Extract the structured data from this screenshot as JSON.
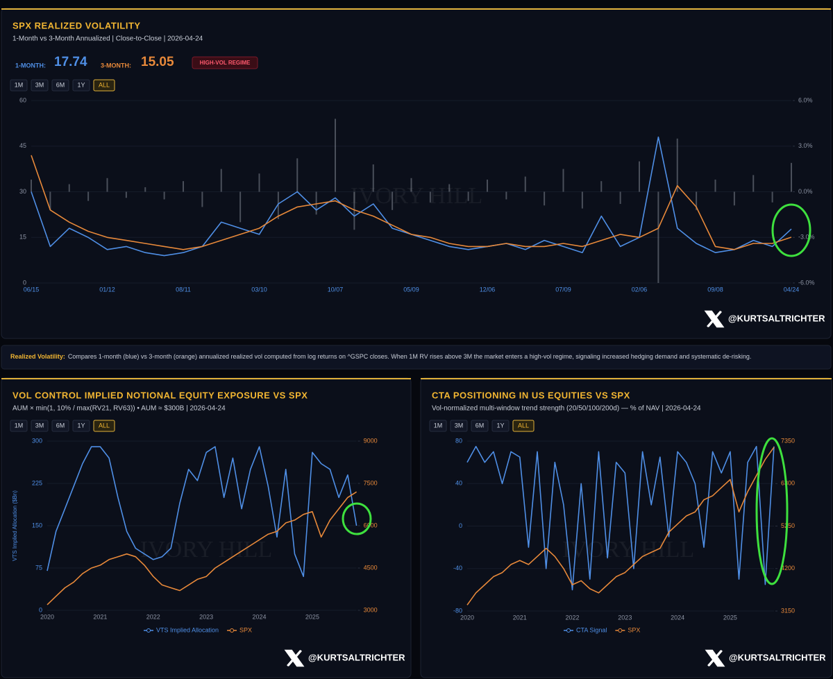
{
  "chart_data": [
    {
      "type": "line",
      "title": "SPX REALIZED VOLATILITY",
      "subtitle": "1-Month vs 3-Month Annualized | Close-to-Close | 2026-04-24",
      "stats": [
        {
          "label": "1-MONTH:",
          "value": 17.74
        },
        {
          "label": "3-MONTH:",
          "value": 15.05
        }
      ],
      "badge": "HIGH-VOL REGIME",
      "ranges": [
        "1M",
        "3M",
        "6M",
        "1Y",
        "ALL"
      ],
      "active_range": 4,
      "categories": [
        "06/15",
        null,
        null,
        null,
        "01/12",
        null,
        null,
        null,
        "08/11",
        null,
        null,
        null,
        "03/10",
        null,
        null,
        null,
        "10/07",
        null,
        null,
        null,
        "05/09",
        null,
        null,
        null,
        "12/06",
        null,
        null,
        null,
        "07/09",
        null,
        null,
        null,
        "02/06",
        null,
        null,
        null,
        "09/08",
        null,
        null,
        null,
        "04/24"
      ],
      "series": [
        {
          "color": "#8a8f9a",
          "axis": "y2",
          "style": "bar",
          "values": [
            0.8,
            -1.2,
            0.5,
            -0.6,
            0.9,
            -0.4,
            0.3,
            -0.5,
            0.7,
            -1.0,
            1.5,
            -2.0,
            1.2,
            -1.8,
            2.2,
            -1.5,
            4.8,
            -2.5,
            1.8,
            -1.2,
            0.9,
            -0.7,
            0.5,
            -0.6,
            0.8,
            -0.5,
            1.0,
            -0.9,
            1.5,
            -1.1,
            0.7,
            -0.8,
            2.0,
            -6.0,
            3.5,
            -1.2,
            0.8,
            -0.9,
            1.1,
            -0.7,
            1.9
          ]
        },
        {
          "color": "#4f8fe6",
          "values": [
            30,
            12,
            18,
            15,
            11,
            12,
            10,
            9,
            10,
            12,
            20,
            18,
            16,
            26,
            30,
            24,
            28,
            22,
            26,
            18,
            16,
            14,
            12,
            11,
            12,
            13,
            11,
            14,
            12,
            10,
            22,
            12,
            15,
            48,
            18,
            13,
            10,
            11,
            14,
            12,
            17.74
          ]
        },
        {
          "color": "#e8893a",
          "values": [
            42,
            24,
            20,
            17,
            15,
            14,
            13,
            12,
            11,
            12,
            14,
            16,
            18,
            22,
            25,
            26,
            27,
            24,
            22,
            19,
            16,
            15,
            13,
            12,
            12,
            13,
            12,
            12,
            13,
            12,
            14,
            16,
            15,
            18,
            32,
            25,
            12,
            11,
            13,
            13,
            15.05
          ]
        }
      ],
      "ylim": [
        0,
        60
      ],
      "yticks": [
        0,
        15,
        30,
        45,
        60
      ],
      "y2lim": [
        -6,
        6
      ],
      "y2ticks": [
        {
          "value": 6,
          "label": "6.0%"
        },
        {
          "value": 3,
          "label": "3.0%"
        },
        {
          "value": 0,
          "label": "0.0%"
        },
        {
          "value": -3,
          "label": "-3.0%"
        },
        {
          "value": -6,
          "label": "-6.0%"
        }
      ],
      "grid": true
    },
    {
      "type": "line",
      "title": "VOL CONTROL IMPLIED NOTIONAL EQUITY EXPOSURE VS SPX",
      "subtitle": "AUM × min(1, 10% / max(RV21, RV63)) • AUM ≈ $300B | 2026-04-24",
      "ranges": [
        "1M",
        "3M",
        "6M",
        "1Y",
        "ALL"
      ],
      "active_range": 4,
      "ylabel": "VTS Implied Allocation ($Bn)",
      "categories": [
        "2020",
        null,
        null,
        null,
        null,
        null,
        "2021",
        null,
        null,
        null,
        null,
        null,
        "2022",
        null,
        null,
        null,
        null,
        null,
        "2023",
        null,
        null,
        null,
        null,
        null,
        "2024",
        null,
        null,
        null,
        null,
        null,
        "2025",
        null,
        null,
        null,
        null,
        null
      ],
      "series": [
        {
          "name": "VTS Implied Allocation",
          "color": "#4f8fe6",
          "values": [
            70,
            140,
            180,
            220,
            260,
            290,
            290,
            270,
            200,
            140,
            110,
            100,
            90,
            95,
            110,
            190,
            250,
            230,
            280,
            290,
            200,
            270,
            180,
            250,
            290,
            220,
            130,
            250,
            100,
            60,
            280,
            260,
            250,
            200,
            240,
            150
          ]
        },
        {
          "name": "SPX",
          "color": "#e8893a",
          "axis": "y2",
          "values": [
            3200,
            3500,
            3800,
            4000,
            4300,
            4500,
            4600,
            4800,
            4900,
            5000,
            4900,
            4600,
            4200,
            3900,
            3800,
            3700,
            3900,
            4100,
            4200,
            4500,
            4700,
            4900,
            5100,
            5300,
            5500,
            5700,
            5800,
            6100,
            6200,
            6400,
            6500,
            5600,
            6200,
            6600,
            7000,
            7200
          ]
        }
      ],
      "ylim": [
        0,
        300
      ],
      "yticks": [
        0,
        75,
        150,
        225,
        300
      ],
      "y2lim": [
        3000,
        9000
      ],
      "y2ticks": [
        3000,
        4500,
        6000,
        7500,
        9000
      ],
      "grid": true,
      "legend": "bottom"
    },
    {
      "type": "line",
      "title": "CTA POSITIONING IN US EQUITIES VS SPX",
      "subtitle": "Vol-normalized multi-window trend strength (20/50/100/200d) — % of NAV | 2026-04-24",
      "ranges": [
        "1M",
        "3M",
        "6M",
        "1Y",
        "ALL"
      ],
      "active_range": 4,
      "categories": [
        "2020",
        null,
        null,
        null,
        null,
        null,
        "2021",
        null,
        null,
        null,
        null,
        null,
        "2022",
        null,
        null,
        null,
        null,
        null,
        "2023",
        null,
        null,
        null,
        null,
        null,
        "2024",
        null,
        null,
        null,
        null,
        null,
        "2025",
        null,
        null,
        null,
        null,
        null
      ],
      "series": [
        {
          "name": "CTA Signal",
          "color": "#4f8fe6",
          "values": [
            60,
            75,
            60,
            70,
            40,
            70,
            65,
            -20,
            70,
            -40,
            60,
            20,
            -60,
            40,
            -50,
            70,
            -30,
            60,
            50,
            -40,
            70,
            20,
            65,
            -10,
            70,
            60,
            40,
            -20,
            70,
            50,
            70,
            -50,
            60,
            75,
            -55,
            75
          ]
        },
        {
          "name": "SPX",
          "color": "#e8893a",
          "axis": "y2",
          "values": [
            3300,
            3600,
            3800,
            4000,
            4100,
            4300,
            4400,
            4300,
            4500,
            4700,
            4500,
            4200,
            3800,
            3900,
            3700,
            3600,
            3800,
            4000,
            4100,
            4300,
            4500,
            4600,
            4700,
            5100,
            5300,
            5500,
            5600,
            5900,
            6000,
            6200,
            6400,
            5600,
            6100,
            6500,
            6900,
            7200
          ]
        }
      ],
      "ylim": [
        -80,
        80
      ],
      "yticks": [
        -80,
        -40,
        0,
        40,
        80
      ],
      "y2lim": [
        3150,
        7350
      ],
      "y2ticks": [
        3150,
        4200,
        5250,
        6300,
        7350
      ],
      "grid": true,
      "legend": "bottom"
    }
  ],
  "note": {
    "label": "Realized Volatility:",
    "text": "Compares 1-month (blue) vs 3-month (orange) annualized realized vol computed from log returns on ^GSPC closes. When 1M RV rises above 3M the market enters a high-vol regime, signaling increased hedging demand and systematic de-risking."
  },
  "watermark": "IVORY HILL",
  "handle": "@KURTSALTRICHTER"
}
